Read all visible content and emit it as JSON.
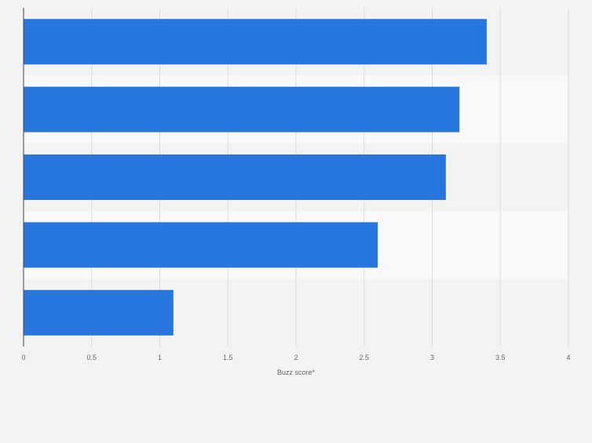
{
  "chart_data": {
    "type": "bar",
    "orientation": "horizontal",
    "categories": [
      "",
      "",
      "",
      "",
      ""
    ],
    "values": [
      3.4,
      3.2,
      3.1,
      2.6,
      1.1
    ],
    "xlabel": "Buzz score*",
    "ylabel": "",
    "xlim": [
      0,
      4
    ],
    "ticks": [
      "0",
      "0.5",
      "1",
      "1.5",
      "2",
      "2.5",
      "3",
      "3.5",
      "4"
    ],
    "grid": true,
    "bar_color": "#2776dd",
    "band_colors": [
      "#f3f3f3",
      "#f9f9f9"
    ],
    "background": "#f3f3f3"
  }
}
